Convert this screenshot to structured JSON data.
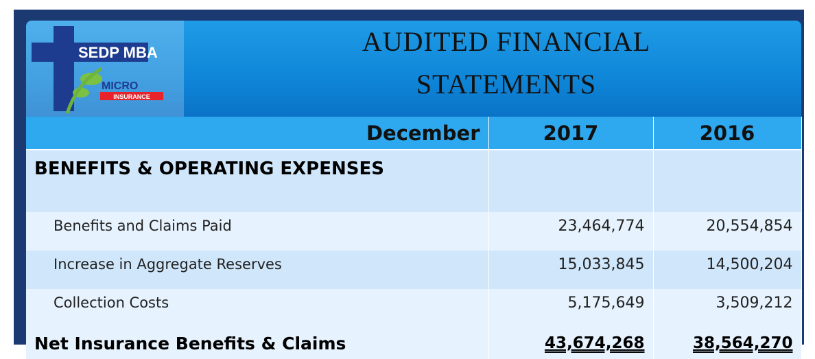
{
  "logo": {
    "name": "SEDP MBA",
    "micro": "MICRO",
    "insurance": "INSURANCE"
  },
  "header": {
    "title": [
      "AUDITED FINANCIAL",
      "STATEMENTS"
    ]
  },
  "table": {
    "columns": [
      "December",
      "2017",
      "2016"
    ],
    "section": "BENEFITS & OPERATING EXPENSES",
    "rows": [
      [
        "Benefits and Claims Paid",
        "23,464,774",
        "20,554,854"
      ],
      [
        "Increase in Aggregate Reserves",
        "15,033,845",
        "14,500,204"
      ],
      [
        "Collection Costs",
        "5,175,649",
        "3,509,212"
      ]
    ],
    "total": [
      "Net Insurance Benefits & Claims",
      "43,674,268",
      "38,564,270"
    ]
  }
}
